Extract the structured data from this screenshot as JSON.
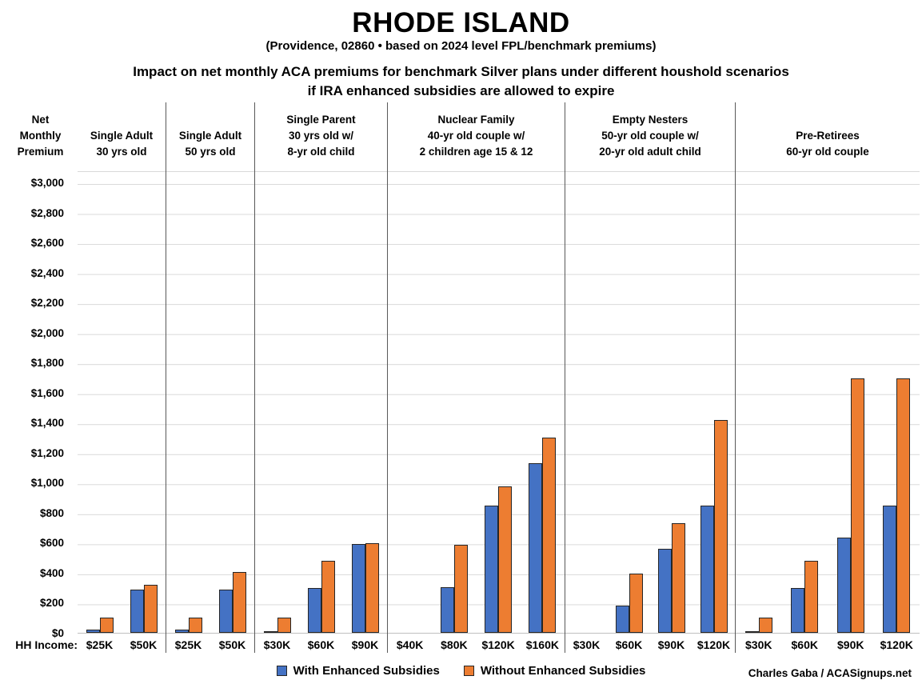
{
  "chart_data": {
    "type": "bar",
    "title": "RHODE ISLAND",
    "subtitle": "(Providence, 02860 • based on 2024 level FPL/benchmark premiums)",
    "heading_lines": [
      "Impact on net monthly ACA premiums for benchmark Silver plans under different houshold scenarios",
      "if IRA enhanced subsidies are allowed to expire"
    ],
    "ylabel": "Net Monthly Premium",
    "ylim": [
      0,
      3000
    ],
    "ytick_step": 200,
    "ytick_format": "$0,000",
    "grid": true,
    "legend_position": "bottom",
    "x_prefix_label": "HH Income:",
    "series": [
      {
        "name": "With Enhanced Subsidies",
        "key": "with",
        "color": "#4472C4"
      },
      {
        "name": "Without Enhanced Subsidies",
        "key": "without",
        "color": "#ED7D31"
      }
    ],
    "groups": [
      {
        "label": "Single Adult\n30 yrs old",
        "incomes": [
          "$25K",
          "$50K"
        ],
        "with": [
          20,
          290
        ],
        "without": [
          100,
          320
        ]
      },
      {
        "label": "Single Adult\n50 yrs old",
        "incomes": [
          "$25K",
          "$50K"
        ],
        "with": [
          20,
          290
        ],
        "without": [
          100,
          405
        ]
      },
      {
        "label": "Single Parent\n30 yrs old w/\n8-yr old child",
        "incomes": [
          "$30K",
          "$60K",
          "$90K"
        ],
        "with": [
          5,
          300,
          590
        ],
        "without": [
          100,
          480,
          595
        ]
      },
      {
        "label": "Nuclear Family\n40-yr old couple w/\n2 children age 15 & 12",
        "incomes": [
          "$40K",
          "$80K",
          "$120K",
          "$160K"
        ],
        "with": [
          0,
          305,
          845,
          1130
        ],
        "without": [
          0,
          585,
          975,
          1300
        ]
      },
      {
        "label": "Empty Nesters\n50-yr old couple w/\n20-yr old adult child",
        "incomes": [
          "$30K",
          "$60K",
          "$90K",
          "$120K"
        ],
        "with": [
          0,
          180,
          560,
          845
        ],
        "without": [
          0,
          395,
          730,
          1420
        ]
      },
      {
        "label": "Pre-Retirees\n60-yr old couple",
        "incomes": [
          "$30K",
          "$60K",
          "$90K",
          "$120K"
        ],
        "with": [
          5,
          300,
          635,
          845
        ],
        "without": [
          100,
          480,
          1695,
          1695
        ]
      }
    ],
    "credit": "Charles Gaba / ACASignups.net"
  }
}
